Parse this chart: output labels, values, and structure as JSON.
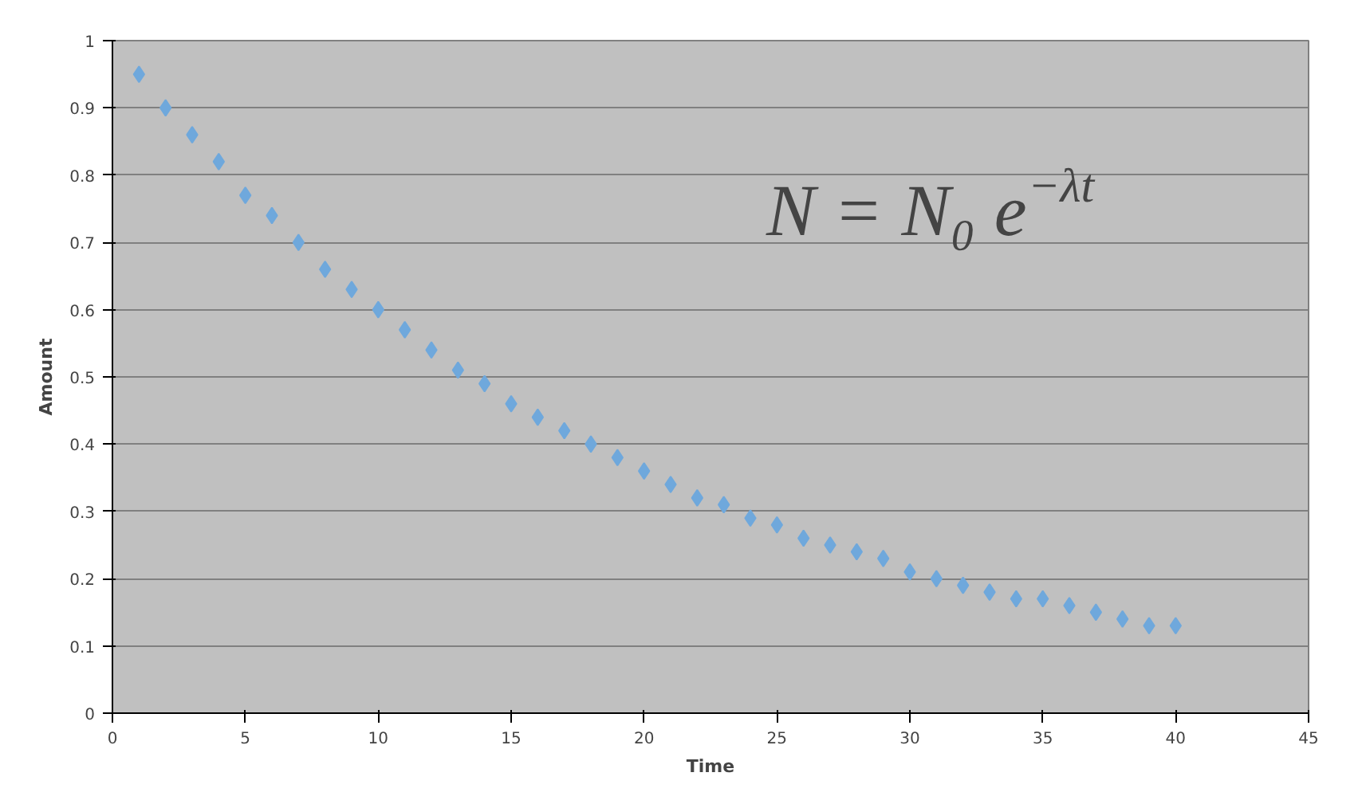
{
  "chart_data": {
    "type": "scatter",
    "xlabel": "Time",
    "ylabel": "Amount",
    "x": [
      1,
      2,
      3,
      4,
      5,
      6,
      7,
      8,
      9,
      10,
      11,
      12,
      13,
      14,
      15,
      16,
      17,
      18,
      19,
      20,
      21,
      22,
      23,
      24,
      25,
      26,
      27,
      28,
      29,
      30,
      31,
      32,
      33,
      34,
      35,
      36,
      37,
      38,
      39,
      40
    ],
    "series": [
      {
        "color": "#6fa8dc",
        "values": [
          0.95,
          0.9,
          0.86,
          0.82,
          0.77,
          0.74,
          0.7,
          0.66,
          0.63,
          0.6,
          0.57,
          0.54,
          0.51,
          0.49,
          0.46,
          0.44,
          0.42,
          0.4,
          0.38,
          0.36,
          0.34,
          0.32,
          0.31,
          0.29,
          0.28,
          0.26,
          0.25,
          0.24,
          0.23,
          0.21,
          0.2,
          0.19,
          0.18,
          0.17,
          0.17,
          0.16,
          0.15,
          0.14,
          0.13,
          0.13
        ]
      }
    ],
    "xlim": [
      0,
      45
    ],
    "xticks": [
      0,
      5,
      10,
      15,
      20,
      25,
      30,
      35,
      40,
      45
    ],
    "ylim": [
      0,
      1
    ],
    "yticks": [
      0,
      0.1,
      0.2,
      0.3,
      0.4,
      0.5,
      0.6,
      0.7,
      0.8,
      0.9,
      1
    ],
    "grid": "y",
    "marker": "diamond",
    "annotations": [
      "N = N₀ e$^{−λt}$"
    ]
  }
}
